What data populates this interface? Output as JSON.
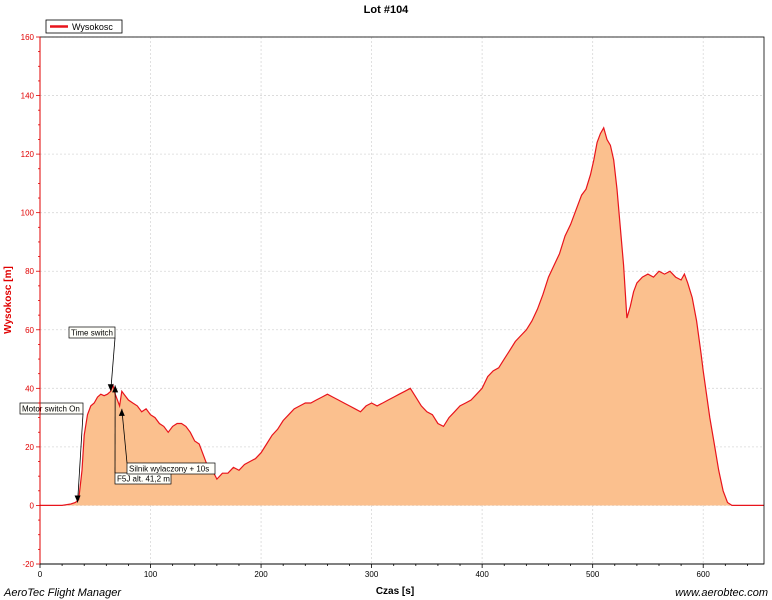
{
  "footer": {
    "left": "AeroTec Flight Manager",
    "right": "www.aerobtec.com"
  },
  "colors": {
    "line": "#e8141c",
    "fill": "#fbc08e",
    "axis_y": "#e00000",
    "grid": "#d8d8d8"
  },
  "chart_data": {
    "type": "area",
    "title": "Lot #104",
    "xlabel": "Czas [s]",
    "ylabel": "Wysokosc [m]",
    "xlim": [
      0,
      655
    ],
    "ylim": [
      -20,
      160
    ],
    "x_ticks": [
      0,
      100,
      200,
      300,
      400,
      500,
      600
    ],
    "y_ticks": [
      -20,
      0,
      20,
      40,
      60,
      80,
      100,
      120,
      140,
      160
    ],
    "grid": true,
    "legend_position": "top-left",
    "series": [
      {
        "name": "Wysokosc",
        "x": [
          0,
          5,
          10,
          20,
          28,
          32,
          35,
          38,
          40,
          43,
          46,
          49,
          52,
          55,
          58,
          61,
          64,
          66,
          68,
          70,
          72,
          74,
          76,
          78,
          80,
          84,
          88,
          92,
          96,
          100,
          104,
          108,
          112,
          116,
          120,
          124,
          128,
          132,
          136,
          140,
          144,
          148,
          152,
          156,
          160,
          165,
          170,
          175,
          180,
          185,
          190,
          195,
          200,
          205,
          210,
          215,
          220,
          225,
          230,
          235,
          240,
          245,
          250,
          255,
          260,
          265,
          270,
          275,
          280,
          285,
          290,
          295,
          300,
          305,
          310,
          315,
          320,
          325,
          330,
          335,
          340,
          345,
          350,
          355,
          360,
          365,
          370,
          375,
          380,
          385,
          390,
          395,
          400,
          405,
          410,
          415,
          420,
          425,
          430,
          435,
          440,
          445,
          450,
          455,
          460,
          465,
          470,
          475,
          480,
          485,
          490,
          494,
          498,
          501,
          504,
          507,
          510,
          513,
          516,
          519,
          522,
          525,
          528,
          531,
          534,
          537,
          540,
          545,
          550,
          555,
          560,
          565,
          570,
          575,
          580,
          583,
          586,
          590,
          594,
          598,
          600,
          603,
          606,
          610,
          614,
          618,
          622,
          626,
          630,
          634,
          638,
          642,
          646,
          650,
          655
        ],
        "values": [
          0,
          0,
          0,
          0,
          0.5,
          1,
          2,
          12,
          24,
          31,
          34,
          35,
          37,
          38,
          37.5,
          38,
          39,
          41,
          38,
          36,
          34,
          39,
          38,
          37,
          36,
          35,
          34,
          32,
          33,
          31,
          30,
          28,
          27,
          25,
          27,
          28,
          28,
          27,
          25,
          22,
          21,
          17,
          13,
          12,
          9,
          11,
          11,
          13,
          12,
          14,
          15,
          16,
          18,
          21,
          24,
          26,
          29,
          31,
          33,
          34,
          35,
          35,
          36,
          37,
          38,
          37,
          36,
          35,
          34,
          33,
          32,
          34,
          35,
          34,
          35,
          36,
          37,
          38,
          39,
          40,
          37,
          34,
          32,
          31,
          28,
          27,
          30,
          32,
          34,
          35,
          36,
          38,
          40,
          44,
          46,
          47,
          50,
          53,
          56,
          58,
          60,
          63,
          67,
          72,
          78,
          82,
          86,
          92,
          96,
          101,
          106,
          108,
          113,
          118,
          124,
          127,
          129,
          125,
          123,
          118,
          108,
          95,
          82,
          64,
          68,
          73,
          76,
          78,
          79,
          78,
          80,
          79,
          80,
          78,
          77,
          79,
          76,
          71,
          63,
          52,
          46,
          38,
          30,
          21,
          12,
          5,
          1,
          0,
          0,
          0,
          0,
          0,
          0,
          0,
          0
        ]
      }
    ],
    "annotations": [
      {
        "label": "Motor switch On",
        "x": 34,
        "y": 1
      },
      {
        "label": "Time switch",
        "x": 64,
        "y": 39
      },
      {
        "label": "F5J alt. 41,2 m",
        "x": 68,
        "y": 41
      },
      {
        "label": "Silnik wylaczony + 10s",
        "x": 74,
        "y": 33
      }
    ]
  }
}
